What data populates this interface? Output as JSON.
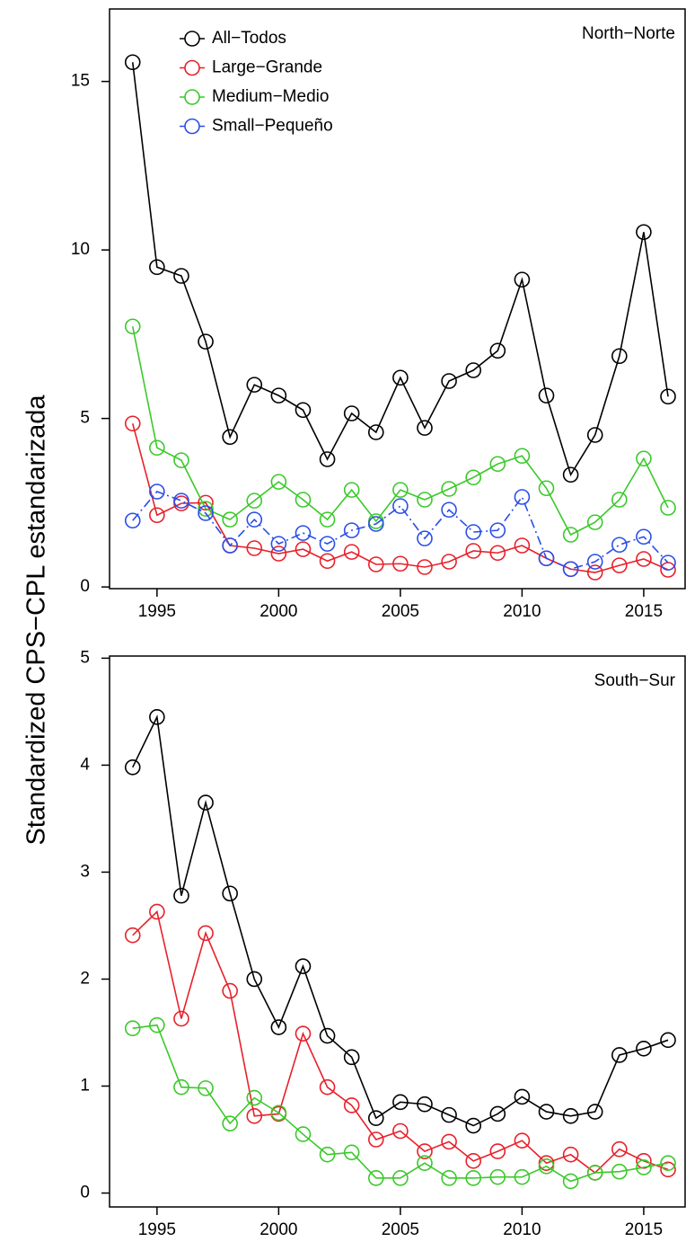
{
  "chart_data": [
    {
      "type": "line",
      "ylabel": "Standardized CPS−CPL estandarizada",
      "panel_label": "North−Norte",
      "x": [
        1994,
        1995,
        1996,
        1997,
        1998,
        1999,
        2000,
        2001,
        2002,
        2003,
        2004,
        2005,
        2006,
        2007,
        2008,
        2009,
        2010,
        2011,
        2012,
        2013,
        2014,
        2015,
        2016
      ],
      "series": [
        {
          "name": "All−Todos",
          "color": "#000000",
          "linestyle": "solid",
          "values": [
            15.57,
            9.49,
            9.23,
            7.28,
            4.45,
            6.0,
            5.68,
            5.25,
            3.79,
            5.15,
            4.59,
            6.21,
            4.72,
            6.11,
            6.43,
            7.01,
            9.12,
            5.68,
            3.33,
            4.51,
            6.85,
            10.53,
            5.65
          ]
        },
        {
          "name": "Large−Grande",
          "color": "#e8202a",
          "linestyle": "solid",
          "values": [
            4.85,
            2.13,
            2.48,
            2.5,
            1.23,
            1.15,
            0.99,
            1.12,
            0.77,
            1.04,
            0.67,
            0.69,
            0.59,
            0.75,
            1.07,
            1.01,
            1.23,
            0.85,
            0.53,
            0.43,
            0.64,
            0.83,
            0.51
          ]
        },
        {
          "name": "Medium−Medio",
          "color": "#3ac92a",
          "linestyle": "solid",
          "values": [
            7.73,
            4.13,
            3.76,
            2.32,
            2.0,
            2.56,
            3.12,
            2.59,
            2.0,
            2.88,
            1.95,
            2.88,
            2.59,
            2.91,
            3.25,
            3.65,
            3.89,
            2.93,
            1.55,
            1.92,
            2.59,
            3.81,
            2.35
          ]
        },
        {
          "name": "Small−Pequeño",
          "color": "#2a4ee8",
          "linestyle": "dashdot",
          "values": [
            1.97,
            2.83,
            2.56,
            2.19,
            1.23,
            2.0,
            1.28,
            1.6,
            1.28,
            1.68,
            1.87,
            2.4,
            1.44,
            2.29,
            1.63,
            1.68,
            2.67,
            0.85,
            0.53,
            0.75,
            1.25,
            1.49,
            0.72
          ]
        }
      ],
      "xlim": [
        1993.05,
        2016.7
      ],
      "xticks": [
        1995,
        2000,
        2005,
        2010,
        2015
      ],
      "ylim": [
        -0.05,
        17.15
      ],
      "yticks": [
        0,
        5,
        10,
        15
      ],
      "legend": "top-left",
      "grid": false
    },
    {
      "type": "line",
      "panel_label": "South−Sur",
      "x": [
        1994,
        1995,
        1996,
        1997,
        1998,
        1999,
        2000,
        2001,
        2002,
        2003,
        2004,
        2005,
        2006,
        2007,
        2008,
        2009,
        2010,
        2011,
        2012,
        2013,
        2014,
        2015,
        2016
      ],
      "series": [
        {
          "color": "#000000",
          "linestyle": "solid",
          "values": [
            3.98,
            4.45,
            2.78,
            3.65,
            2.8,
            2.0,
            1.55,
            2.12,
            1.47,
            1.27,
            0.7,
            0.85,
            0.83,
            0.73,
            0.63,
            0.74,
            0.9,
            0.76,
            0.72,
            0.76,
            1.29,
            1.35,
            1.43
          ]
        },
        {
          "color": "#e8202a",
          "linestyle": "solid",
          "values": [
            2.41,
            2.63,
            1.63,
            2.43,
            1.89,
            0.72,
            0.74,
            1.49,
            0.99,
            0.82,
            0.5,
            0.58,
            0.39,
            0.48,
            0.3,
            0.39,
            0.49,
            0.28,
            0.36,
            0.19,
            0.41,
            0.3,
            0.22
          ]
        },
        {
          "color": "#3ac92a",
          "linestyle": "solid",
          "values": [
            1.54,
            1.57,
            0.99,
            0.98,
            0.65,
            0.89,
            0.75,
            0.55,
            0.36,
            0.38,
            0.14,
            0.14,
            0.28,
            0.14,
            0.14,
            0.15,
            0.15,
            0.25,
            0.11,
            0.19,
            0.2,
            0.24,
            0.28
          ]
        }
      ],
      "xlim": [
        1993.05,
        2016.7
      ],
      "xticks": [
        1995,
        2000,
        2005,
        2010,
        2015
      ],
      "ylim": [
        -0.13,
        5.02
      ],
      "yticks": [
        0,
        1,
        2,
        3,
        4,
        5
      ],
      "grid": false
    }
  ]
}
